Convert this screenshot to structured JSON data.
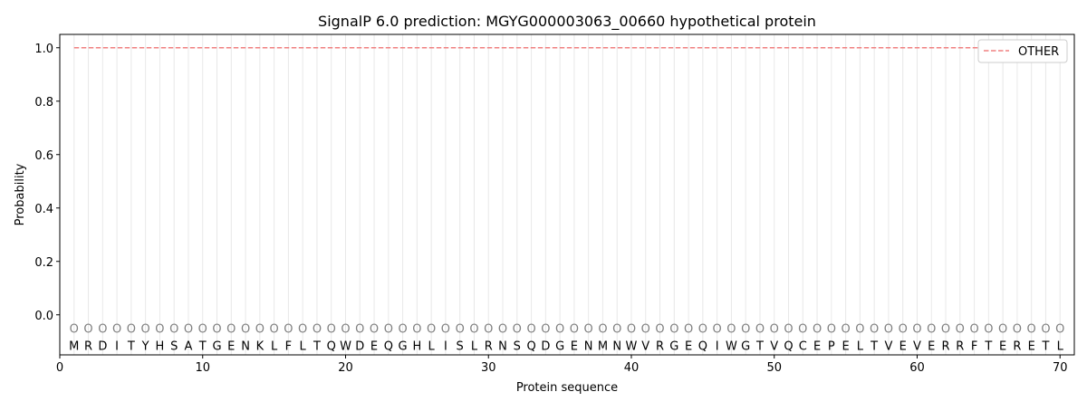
{
  "chart_data": {
    "type": "line",
    "title": "SignalP 6.0 prediction: MGYG000003063_00660 hypothetical protein",
    "xlabel": "Protein sequence",
    "ylabel": "Probability",
    "xlim": [
      0,
      71
    ],
    "ylim": [
      -0.15,
      1.05
    ],
    "xticks": [
      0,
      10,
      20,
      30,
      40,
      50,
      60,
      70
    ],
    "yticks": [
      0.0,
      0.2,
      0.4,
      0.6,
      0.8,
      1.0
    ],
    "ytick_labels": [
      "0.0",
      "0.2",
      "0.4",
      "0.6",
      "0.8",
      "1.0"
    ],
    "grid": "vertical lines at each residue",
    "legend_placement": "top-right",
    "sequence": [
      "M",
      "R",
      "D",
      "I",
      "T",
      "Y",
      "H",
      "S",
      "A",
      "T",
      "G",
      "E",
      "N",
      "K",
      "L",
      "F",
      "L",
      "T",
      "Q",
      "W",
      "D",
      "E",
      "Q",
      "G",
      "H",
      "L",
      "I",
      "S",
      "L",
      "R",
      "N",
      "S",
      "Q",
      "D",
      "G",
      "E",
      "N",
      "M",
      "N",
      "W",
      "V",
      "R",
      "G",
      "E",
      "Q",
      "I",
      "W",
      "G",
      "T",
      "V",
      "Q",
      "C",
      "E",
      "P",
      "E",
      "L",
      "T",
      "V",
      "E",
      "V",
      "E",
      "R",
      "R",
      "F",
      "T",
      "E",
      "R",
      "E",
      "T",
      "L"
    ],
    "residue_labels": "O",
    "series": [
      {
        "name": "OTHER",
        "color": "#f08080",
        "style": "dashed",
        "x_start": 1,
        "x_end": 70,
        "value": 1.0
      }
    ]
  }
}
